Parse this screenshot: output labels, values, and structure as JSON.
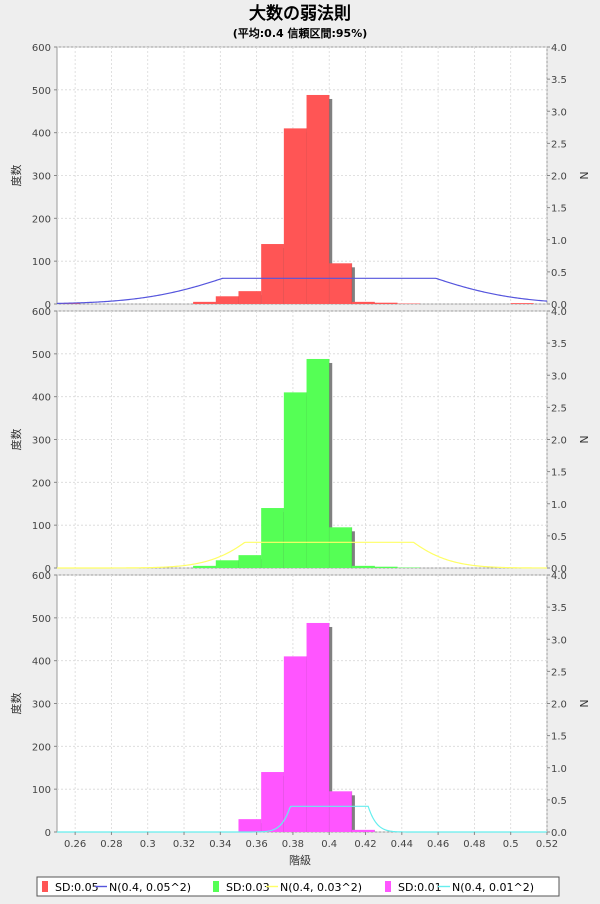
{
  "title": "大数の弱法則",
  "subtitle": "(平均:0.4 信頼区間:95%)",
  "chart_data": {
    "type": "bar",
    "title": "大数の弱法則",
    "subtitle": "(平均:0.4 信頼区間:95%)",
    "xlabel": "階級",
    "ylabel": "度数",
    "y2label": "N",
    "xlim": [
      0.25,
      0.52
    ],
    "ylim": [
      0,
      600
    ],
    "y2lim": [
      0,
      4.0
    ],
    "xticks": [
      "0.26",
      "0.28",
      "0.3",
      "0.32",
      "0.34",
      "0.36",
      "0.38",
      "0.4",
      "0.42",
      "0.44",
      "0.46",
      "0.48",
      "0.5",
      "0.52"
    ],
    "yticks": [
      "0",
      "100",
      "200",
      "300",
      "400",
      "500",
      "600"
    ],
    "y2ticks": [
      "0.0",
      "0.5",
      "1.0",
      "1.5",
      "2.0",
      "2.5",
      "3.0",
      "3.5",
      "4.0"
    ],
    "grid": true,
    "legend_position": "bottom",
    "bin_width": 0.0125,
    "bin_starts": [
      0.25,
      0.2625,
      0.275,
      0.2875,
      0.3,
      0.3125,
      0.325,
      0.3375,
      0.35,
      0.3625,
      0.375,
      0.3875,
      0.4,
      0.4125,
      0.425,
      0.4375,
      0.45,
      0.4625,
      0.475,
      0.4875,
      0.5
    ],
    "panels": [
      {
        "name": "SD:0.05",
        "color": "#ff5555",
        "values": [
          2,
          0,
          0,
          0,
          0,
          0,
          5,
          18,
          30,
          140,
          410,
          488,
          95,
          5,
          3,
          1,
          0,
          0,
          0,
          0,
          2
        ],
        "curve": {
          "name": "N(0.4, 0.05^2)",
          "mean": 0.4,
          "sd": 0.05,
          "color": "#5555dd"
        }
      },
      {
        "name": "SD:0.03",
        "color": "#55ff55",
        "values": [
          0,
          0,
          0,
          0,
          0,
          0,
          5,
          18,
          30,
          140,
          410,
          488,
          95,
          5,
          3,
          1,
          0,
          0,
          0,
          0,
          0
        ],
        "curve": {
          "name": "N(0.4, 0.03^2)",
          "mean": 0.4,
          "sd": 0.03,
          "color": "#ffff66"
        }
      },
      {
        "name": "SD:0.01",
        "color": "#ff55ff",
        "values": [
          0,
          0,
          0,
          0,
          0,
          0,
          0,
          0,
          30,
          140,
          410,
          488,
          95,
          5,
          0,
          0,
          0,
          0,
          0,
          0,
          0
        ],
        "curve": {
          "name": "N(0.4, 0.01^2)",
          "mean": 0.4,
          "sd": 0.01,
          "color": "#66eeee"
        }
      }
    ]
  }
}
